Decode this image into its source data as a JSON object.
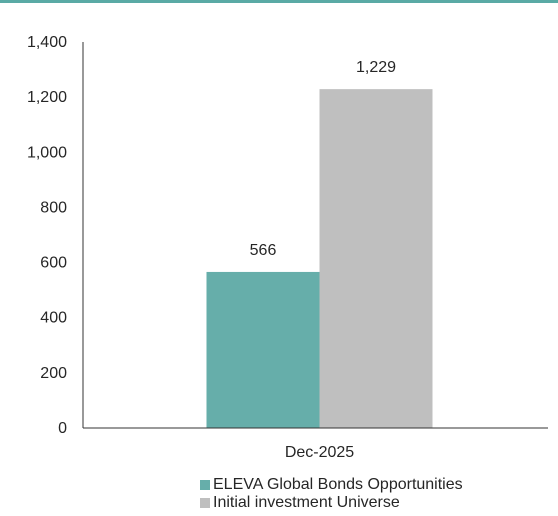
{
  "colors": {
    "accent_rule": "#5aaaa5",
    "axis": "#333333",
    "text": "#262626"
  },
  "chart_data": {
    "type": "bar",
    "title": "",
    "xlabel": "",
    "ylabel": "",
    "categories": [
      "Dec-2025"
    ],
    "ylim": [
      0,
      1400
    ],
    "yticks": [
      0,
      200,
      400,
      600,
      800,
      1000,
      1200,
      1400
    ],
    "ytick_labels": [
      "0",
      "200",
      "400",
      "600",
      "800",
      "1,000",
      "1,200",
      "1,400"
    ],
    "grid": false,
    "legend_position": "bottom",
    "series": [
      {
        "name": "ELEVA Global Bonds Opportunities",
        "values": [
          566
        ],
        "value_labels": [
          "566"
        ],
        "color": "#66aeaa"
      },
      {
        "name": "Initial investment Universe",
        "values": [
          1229
        ],
        "value_labels": [
          "1,229"
        ],
        "color": "#bfbfbf"
      }
    ]
  }
}
